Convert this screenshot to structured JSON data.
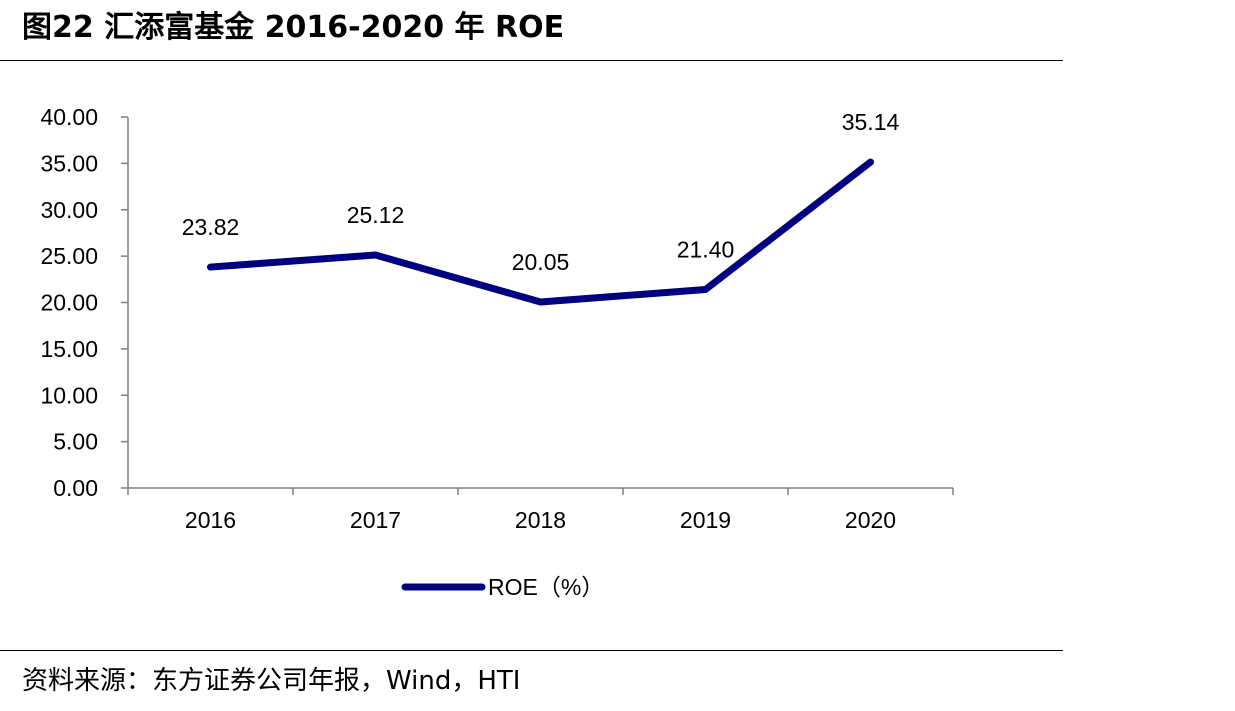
{
  "figure": {
    "title": "图22 汇添富基金 2016-2020 年 ROE",
    "source": "资料来源：东方证券公司年报，Wind，HTI"
  },
  "chart_data": {
    "type": "line",
    "categories": [
      "2016",
      "2017",
      "2018",
      "2019",
      "2020"
    ],
    "series": [
      {
        "name": "ROE（%）",
        "values": [
          23.82,
          25.12,
          20.05,
          21.4,
          35.14
        ],
        "labels": [
          "23.82",
          "25.12",
          "20.05",
          "21.40",
          "35.14"
        ],
        "color": "#000080"
      }
    ],
    "yticks": [
      "0.00",
      "5.00",
      "10.00",
      "15.00",
      "20.00",
      "25.00",
      "30.00",
      "35.00",
      "40.00"
    ],
    "ylim": [
      0,
      40
    ],
    "xlabel": "",
    "ylabel": "",
    "grid": false,
    "legend_position": "bottom-center"
  }
}
